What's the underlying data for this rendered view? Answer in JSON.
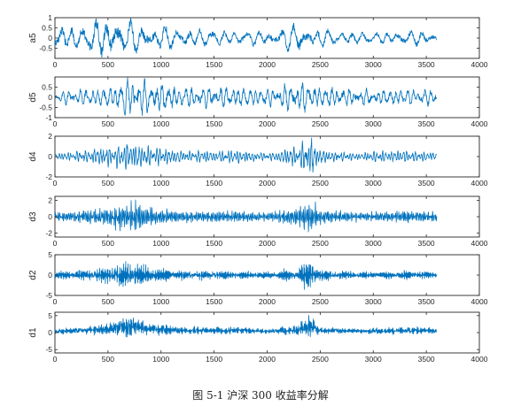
{
  "caption": "图 5-1 沪深 300 收益率分解",
  "colors": {
    "line": "#0072BD",
    "axis": "#262626",
    "background": "#ffffff"
  },
  "chart_data": [
    {
      "type": "line",
      "ylabel": "a5",
      "xlim": [
        0,
        4000
      ],
      "ylim": [
        -1,
        1
      ],
      "xticks": [
        0,
        500,
        1000,
        1500,
        2000,
        2500,
        3000,
        3500,
        4000
      ],
      "yticks": [
        -0.5,
        0,
        0.5,
        1
      ],
      "ytick_labels": [
        "-0.5",
        "0",
        "0.5",
        "1"
      ],
      "n_points": 3600,
      "x_range": [
        1,
        3600
      ],
      "approx_period": 110,
      "approx_amplitude": 0.35,
      "envelope": [
        [
          0,
          0.5
        ],
        [
          300,
          0.55
        ],
        [
          450,
          0.9
        ],
        [
          600,
          0.8
        ],
        [
          700,
          0.7
        ],
        [
          900,
          0.55
        ],
        [
          1300,
          0.4
        ],
        [
          1500,
          0.35
        ],
        [
          2000,
          0.3
        ],
        [
          2300,
          0.6
        ],
        [
          2400,
          0.5
        ],
        [
          2600,
          0.3
        ],
        [
          3000,
          0.25
        ],
        [
          3300,
          0.3
        ],
        [
          3600,
          0.3
        ]
      ],
      "grid": false,
      "legend": "none"
    },
    {
      "type": "line",
      "ylabel": "d5",
      "xlim": [
        0,
        4000
      ],
      "ylim": [
        -1,
        1
      ],
      "xticks": [
        0,
        500,
        1000,
        1500,
        2000,
        2500,
        3000,
        3500,
        4000
      ],
      "yticks": [
        -1,
        -0.5,
        0,
        0.5
      ],
      "ytick_labels": [
        "-1",
        "-0.5",
        "0",
        "0.5"
      ],
      "n_points": 3600,
      "x_range": [
        1,
        3600
      ],
      "approx_period": 55,
      "approx_amplitude": 0.5,
      "envelope": [
        [
          0,
          0.2
        ],
        [
          200,
          0.35
        ],
        [
          500,
          0.4
        ],
        [
          700,
          0.85
        ],
        [
          900,
          0.65
        ],
        [
          1200,
          0.45
        ],
        [
          1600,
          0.45
        ],
        [
          2000,
          0.35
        ],
        [
          2300,
          0.7
        ],
        [
          2500,
          0.45
        ],
        [
          3000,
          0.3
        ],
        [
          3300,
          0.35
        ],
        [
          3600,
          0.35
        ]
      ],
      "grid": false,
      "legend": "none"
    },
    {
      "type": "line",
      "ylabel": "d4",
      "xlim": [
        0,
        4000
      ],
      "ylim": [
        -2,
        2
      ],
      "xticks": [
        0,
        500,
        1000,
        1500,
        2000,
        2500,
        3000,
        3500,
        4000
      ],
      "yticks": [
        -2,
        0,
        2
      ],
      "ytick_labels": [
        "-2",
        "0",
        "2"
      ],
      "n_points": 3600,
      "x_range": [
        1,
        3600
      ],
      "approx_period": 28,
      "approx_amplitude": 0.6,
      "envelope": [
        [
          0,
          0.3
        ],
        [
          250,
          0.5
        ],
        [
          500,
          0.8
        ],
        [
          700,
          1.3
        ],
        [
          850,
          0.9
        ],
        [
          1200,
          0.5
        ],
        [
          1700,
          0.55
        ],
        [
          2000,
          0.3
        ],
        [
          2300,
          0.9
        ],
        [
          2400,
          1.7
        ],
        [
          2500,
          0.6
        ],
        [
          2800,
          0.3
        ],
        [
          3000,
          0.45
        ],
        [
          3300,
          0.5
        ],
        [
          3600,
          0.35
        ]
      ],
      "grid": false,
      "legend": "none"
    },
    {
      "type": "line",
      "ylabel": "d3",
      "xlim": [
        0,
        4000
      ],
      "ylim": [
        -2.5,
        2.5
      ],
      "xticks": [
        0,
        500,
        1000,
        1500,
        2000,
        2500,
        3000,
        3500,
        4000
      ],
      "yticks": [
        -2,
        0,
        2
      ],
      "ytick_labels": [
        "-2",
        "0",
        "2"
      ],
      "n_points": 3600,
      "x_range": [
        1,
        3600
      ],
      "approx_period": 14,
      "approx_amplitude": 0.6,
      "envelope": [
        [
          0,
          0.5
        ],
        [
          300,
          0.7
        ],
        [
          500,
          1.0
        ],
        [
          700,
          1.7
        ],
        [
          900,
          1.0
        ],
        [
          1200,
          0.6
        ],
        [
          1700,
          0.6
        ],
        [
          2000,
          0.45
        ],
        [
          2300,
          1.0
        ],
        [
          2400,
          1.9
        ],
        [
          2500,
          0.8
        ],
        [
          2900,
          0.45
        ],
        [
          3300,
          0.7
        ],
        [
          3500,
          0.55
        ],
        [
          3600,
          0.5
        ]
      ],
      "grid": false,
      "legend": "none"
    },
    {
      "type": "line",
      "ylabel": "d2",
      "xlim": [
        0,
        4000
      ],
      "ylim": [
        -5,
        5
      ],
      "xticks": [
        0,
        500,
        1000,
        1500,
        2000,
        2500,
        3000,
        3500,
        4000
      ],
      "yticks": [
        -5,
        0,
        5
      ],
      "ytick_labels": [
        "-5",
        "0",
        "5"
      ],
      "n_points": 3600,
      "x_range": [
        1,
        3600
      ],
      "approx_period": 7,
      "approx_amplitude": 1.0,
      "envelope": [
        [
          0,
          0.8
        ],
        [
          300,
          1.2
        ],
        [
          500,
          1.8
        ],
        [
          700,
          3.0
        ],
        [
          900,
          1.6
        ],
        [
          1200,
          1.0
        ],
        [
          1700,
          0.9
        ],
        [
          2000,
          0.7
        ],
        [
          2300,
          1.5
        ],
        [
          2400,
          3.5
        ],
        [
          2500,
          1.2
        ],
        [
          2900,
          0.7
        ],
        [
          3300,
          0.9
        ],
        [
          3600,
          0.8
        ]
      ],
      "grid": false,
      "legend": "none"
    },
    {
      "type": "line",
      "ylabel": "d1",
      "xlim": [
        0,
        4000
      ],
      "ylim": [
        -6,
        6
      ],
      "xticks": [
        0,
        500,
        1000,
        1500,
        2000,
        2500,
        3000,
        3500,
        4000
      ],
      "yticks": [
        -5,
        0,
        5
      ],
      "ytick_labels": [
        "-5",
        "0",
        "5"
      ],
      "n_points": 3600,
      "x_range": [
        1,
        3600
      ],
      "approx_period": 3,
      "approx_amplitude": 1.3,
      "envelope": [
        [
          0,
          1.0
        ],
        [
          300,
          1.5
        ],
        [
          500,
          2.5
        ],
        [
          700,
          4.5
        ],
        [
          900,
          2.5
        ],
        [
          1200,
          1.5
        ],
        [
          1700,
          1.4
        ],
        [
          2000,
          1.0
        ],
        [
          2300,
          2.0
        ],
        [
          2400,
          4.8
        ],
        [
          2500,
          1.5
        ],
        [
          2900,
          1.0
        ],
        [
          3300,
          1.5
        ],
        [
          3600,
          1.2
        ]
      ],
      "grid": false,
      "legend": "none"
    }
  ]
}
